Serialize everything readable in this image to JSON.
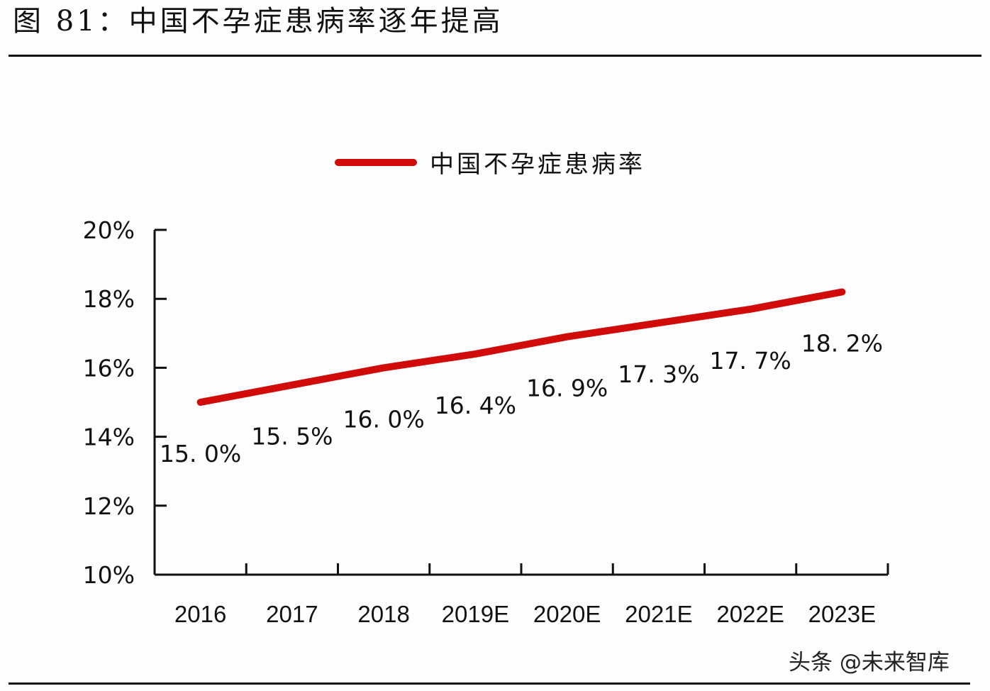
{
  "figure": {
    "title": "图 81：中国不孕症患病率逐年提高",
    "watermark": "头条 @未来智库"
  },
  "colors": {
    "series_line": "#d10a0a",
    "axis": "#111111",
    "text": "#111111",
    "background": "#fdfdfd"
  },
  "chart_data": {
    "type": "line",
    "title": "图 81：中国不孕症患病率逐年提高",
    "xlabel": "",
    "ylabel": "",
    "categories": [
      "2016",
      "2017",
      "2018",
      "2019E",
      "2020E",
      "2021E",
      "2022E",
      "2023E"
    ],
    "series": [
      {
        "name": "中国不孕症患病率",
        "values": [
          15.0,
          15.5,
          16.0,
          16.4,
          16.9,
          17.3,
          17.7,
          18.2
        ],
        "labels": [
          "15. 0%",
          "15. 5%",
          "16. 0%",
          "16. 4%",
          "16. 9%",
          "17. 3%",
          "17. 7%",
          "18. 2%"
        ],
        "color": "#d10a0a"
      }
    ],
    "ylim": [
      10,
      20
    ],
    "yticks": [
      10,
      12,
      14,
      16,
      18,
      20
    ],
    "ytick_labels": [
      "10%",
      "12%",
      "14%",
      "16%",
      "18%",
      "20%"
    ],
    "grid": false,
    "legend_position": "top-center",
    "data_labels_position": "below"
  }
}
